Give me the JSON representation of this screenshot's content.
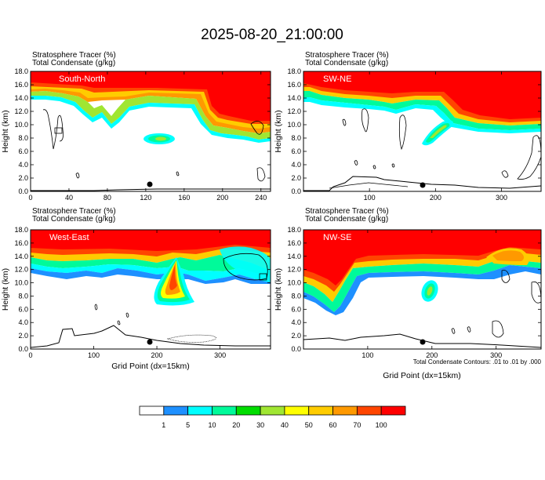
{
  "figure": {
    "title": "2025-08-20_21:00:00",
    "contour_note": "Total Condensate Contours: .01 to .01 by .000",
    "xlabel": "Grid Point (dx=15km)",
    "ylabel": "Height (km)"
  },
  "colorbar": {
    "labels": [
      "1",
      "5",
      "10",
      "20",
      "30",
      "40",
      "50",
      "60",
      "70",
      "100"
    ],
    "colors": [
      "#ffffff",
      "#1e90ff",
      "#00ffff",
      "#00fa9a",
      "#00dd00",
      "#a0e632",
      "#ffff00",
      "#ffcc00",
      "#ff9900",
      "#ff4500",
      "#ff0000"
    ]
  },
  "chart_data": [
    {
      "type": "heatmap",
      "panel_label": "South-North",
      "field_labels": [
        "Stratosphere Tracer   (%)",
        "Total Condensate   (g/kg)"
      ],
      "ylabel": "Height (km)",
      "ylim": [
        0,
        18
      ],
      "y_ticks": [
        "0.0",
        "2.0",
        "4.0",
        "6.0",
        "8.0",
        "10.0",
        "12.0",
        "14.0",
        "16.0",
        "18.0"
      ],
      "xlim": [
        0,
        250
      ],
      "x_ticks": [
        "0",
        "40",
        "80",
        "120",
        "160",
        "200",
        "240"
      ],
      "x_tick_values": [
        0,
        40,
        80,
        120,
        160,
        200,
        240
      ],
      "tropopause_km": [
        [
          0,
          15.6
        ],
        [
          30,
          15.2
        ],
        [
          60,
          14.4
        ],
        [
          75,
          12.6
        ],
        [
          85,
          14.2
        ],
        [
          110,
          13.6
        ],
        [
          150,
          13.5
        ],
        [
          185,
          13.8
        ],
        [
          200,
          11.4
        ],
        [
          220,
          11.0
        ],
        [
          250,
          11.2
        ]
      ],
      "terrain_km": [
        [
          0,
          0.1
        ],
        [
          60,
          0.1
        ],
        [
          120,
          0.2
        ],
        [
          160,
          0.3
        ],
        [
          250,
          0.3
        ]
      ],
      "marker_x": 127
    },
    {
      "type": "heatmap",
      "panel_label": "SW-NE",
      "field_labels": [
        "Stratosphere Tracer   (%)",
        "Total Condensate   (g/kg)"
      ],
      "ylabel": "Height (km)",
      "ylim": [
        0,
        18
      ],
      "y_ticks": [
        "0.0",
        "2.0",
        "4.0",
        "6.0",
        "8.0",
        "10.0",
        "12.0",
        "14.0",
        "16.0",
        "18.0"
      ],
      "xlim": [
        0,
        360
      ],
      "x_ticks": [
        "100",
        "200",
        "300"
      ],
      "x_tick_values": [
        100,
        200,
        300
      ],
      "tropopause_km": [
        [
          0,
          15.6
        ],
        [
          20,
          14.4
        ],
        [
          60,
          13.8
        ],
        [
          120,
          13.2
        ],
        [
          170,
          12.8
        ],
        [
          215,
          10.6
        ],
        [
          260,
          10.2
        ],
        [
          320,
          9.8
        ],
        [
          360,
          10.1
        ]
      ],
      "terrain_km": [
        [
          0,
          0.1
        ],
        [
          40,
          0.3
        ],
        [
          70,
          1.6
        ],
        [
          90,
          2.2
        ],
        [
          130,
          1.6
        ],
        [
          175,
          1.4
        ],
        [
          230,
          0.6
        ],
        [
          300,
          0.5
        ],
        [
          360,
          0.8
        ]
      ],
      "marker_x": 178
    },
    {
      "type": "heatmap",
      "panel_label": "West-East",
      "field_labels": [
        "Stratosphere Tracer   (%)",
        "Total Condensate   (g/kg)"
      ],
      "ylabel": "Height (km)",
      "ylim": [
        0,
        18
      ],
      "y_ticks": [
        "0.0",
        "2.0",
        "4.0",
        "6.0",
        "8.0",
        "10.0",
        "12.0",
        "14.0",
        "16.0",
        "18.0"
      ],
      "xlim": [
        0,
        380
      ],
      "x_ticks": [
        "0",
        "100",
        "200",
        "300"
      ],
      "x_tick_values": [
        0,
        100,
        200,
        300
      ],
      "tropopause_km": [
        [
          0,
          14.4
        ],
        [
          40,
          14.0
        ],
        [
          100,
          13.6
        ],
        [
          160,
          13.4
        ],
        [
          220,
          13.0
        ],
        [
          260,
          13.2
        ],
        [
          300,
          14.0
        ],
        [
          340,
          15.2
        ],
        [
          380,
          14.4
        ]
      ],
      "terrain_km": [
        [
          0,
          0.1
        ],
        [
          60,
          0.6
        ],
        [
          75,
          2.0
        ],
        [
          110,
          2.0
        ],
        [
          140,
          3.1
        ],
        [
          160,
          2.2
        ],
        [
          200,
          0.6
        ],
        [
          260,
          0.4
        ],
        [
          300,
          0.3
        ],
        [
          380,
          0.2
        ]
      ],
      "marker_x": 188
    },
    {
      "type": "heatmap",
      "panel_label": "NW-SE",
      "field_labels": [
        "Stratosphere Tracer   (%)",
        "Total Condensate   (g/kg)"
      ],
      "ylabel": "Height (km)",
      "ylim": [
        0,
        18
      ],
      "y_ticks": [
        "0.0",
        "2.0",
        "4.0",
        "6.0",
        "8.0",
        "10.0",
        "12.0",
        "14.0",
        "16.0",
        "18.0"
      ],
      "xlim": [
        0,
        370
      ],
      "x_ticks": [
        "100",
        "200",
        "300"
      ],
      "x_tick_values": [
        100,
        200,
        300
      ],
      "tropopause_km": [
        [
          0,
          10.4
        ],
        [
          20,
          9.4
        ],
        [
          40,
          7.6
        ],
        [
          50,
          11.6
        ],
        [
          70,
          12.6
        ],
        [
          120,
          12.2
        ],
        [
          200,
          12.4
        ],
        [
          270,
          12.8
        ],
        [
          300,
          12.2
        ],
        [
          340,
          13.4
        ],
        [
          370,
          13.8
        ]
      ],
      "terrain_km": [
        [
          0,
          1.4
        ],
        [
          40,
          1.2
        ],
        [
          80,
          1.6
        ],
        [
          150,
          1.4
        ],
        [
          200,
          0.6
        ],
        [
          300,
          0.4
        ],
        [
          370,
          0.2
        ]
      ],
      "marker_x": 172
    }
  ]
}
